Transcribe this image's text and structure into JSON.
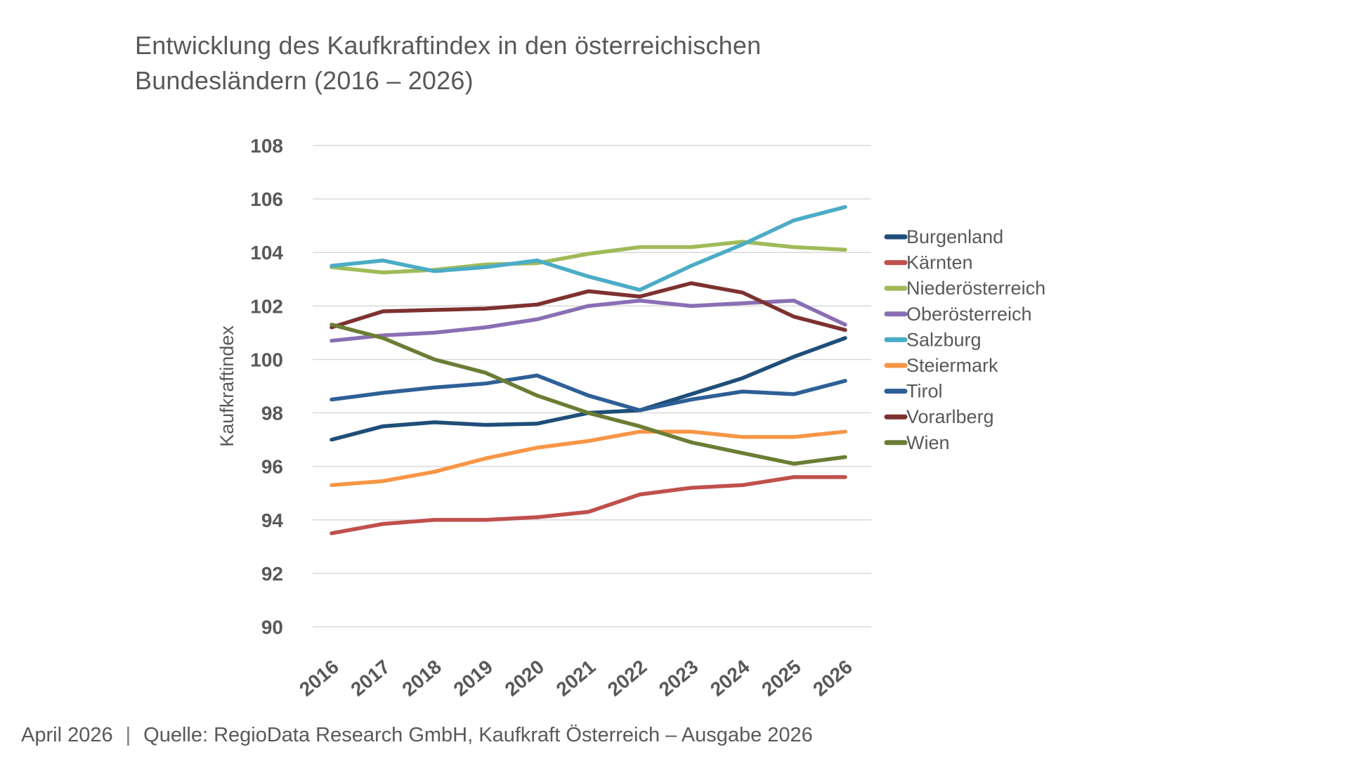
{
  "header": {
    "title_line1": "Entwicklung des Kaufkraftindex in den österreichischen",
    "title_line2": "Bundesländern (2016 – 2026)"
  },
  "footer": {
    "date": "April 2026",
    "separator": "|",
    "source": "Quelle: RegioData Research GmbH, Kaufkraft Österreich – Ausgabe 2026"
  },
  "chart_data": {
    "type": "line",
    "title": "Entwicklung des Kaufkraftindex in den österreichischen Bundesländern (2016 – 2026)",
    "xlabel": "",
    "ylabel": "Kaufkraftindex",
    "ylim": [
      90,
      108
    ],
    "ytick_step": 2,
    "grid": true,
    "legend_position": "right",
    "categories": [
      "2016",
      "2017",
      "2018",
      "2019",
      "2020",
      "2021",
      "2022",
      "2023",
      "2024",
      "2025",
      "2026"
    ],
    "series": [
      {
        "key": "burgenland",
        "name": "Burgenland",
        "color": "#1F4E79",
        "values": [
          97.0,
          97.5,
          97.65,
          97.55,
          97.6,
          98.0,
          98.1,
          98.7,
          99.3,
          100.1,
          100.8
        ]
      },
      {
        "key": "kaernten",
        "name": "Kärnten",
        "color": "#C0504D",
        "values": [
          93.5,
          93.85,
          94.0,
          94.0,
          94.1,
          94.3,
          94.95,
          95.2,
          95.3,
          95.6,
          95.6
        ]
      },
      {
        "key": "niederoesterreich",
        "name": "Niederösterreich",
        "color": "#9FBB59",
        "values": [
          103.45,
          103.25,
          103.35,
          103.55,
          103.6,
          103.95,
          104.2,
          104.2,
          104.4,
          104.2,
          104.1
        ]
      },
      {
        "key": "oberoesterreich",
        "name": "Oberösterreich",
        "color": "#8A6FB4",
        "values": [
          100.7,
          100.9,
          101.0,
          101.2,
          101.5,
          102.0,
          102.2,
          102.0,
          102.1,
          102.2,
          101.3
        ]
      },
      {
        "key": "salzburg",
        "name": "Salzburg",
        "color": "#4BACC6",
        "values": [
          103.5,
          103.7,
          103.3,
          103.45,
          103.7,
          103.1,
          102.6,
          103.5,
          104.3,
          105.2,
          105.7
        ]
      },
      {
        "key": "steiermark",
        "name": "Steiermark",
        "color": "#F79646",
        "values": [
          95.3,
          95.45,
          95.8,
          96.3,
          96.7,
          96.95,
          97.3,
          97.3,
          97.1,
          97.1,
          97.3
        ]
      },
      {
        "key": "tirol",
        "name": "Tirol",
        "color": "#2E5F97",
        "values": [
          98.5,
          98.75,
          98.95,
          99.1,
          99.4,
          98.65,
          98.1,
          98.5,
          98.8,
          98.7,
          99.2
        ]
      },
      {
        "key": "vorarlberg",
        "name": "Vorarlberg",
        "color": "#7D3230",
        "values": [
          101.2,
          101.8,
          101.85,
          101.9,
          102.05,
          102.55,
          102.35,
          102.85,
          102.5,
          101.6,
          101.1
        ]
      },
      {
        "key": "wien",
        "name": "Wien",
        "color": "#6B7D34",
        "values": [
          101.3,
          100.8,
          100.0,
          99.5,
          98.65,
          98.0,
          97.5,
          96.9,
          96.5,
          96.1,
          96.35
        ]
      }
    ]
  }
}
